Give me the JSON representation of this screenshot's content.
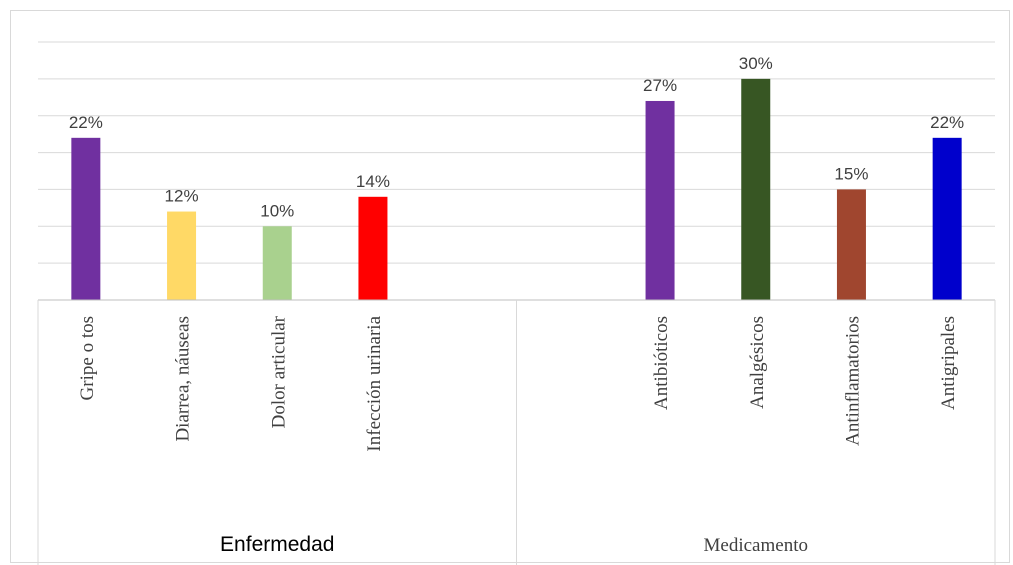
{
  "chart_data": {
    "type": "bar",
    "ylim": [
      0,
      35
    ],
    "grid": true,
    "groups": [
      {
        "label": "Enfermedad",
        "categories": [
          "Gripe o tos",
          "Diarrea, náuseas",
          "Dolor articular",
          "Infección urinaria"
        ],
        "values": [
          22,
          12,
          10,
          14
        ],
        "value_labels": [
          "22%",
          "12%",
          "10%",
          "14%"
        ],
        "colors": [
          "#7030a0",
          "#ffd966",
          "#a9d18e",
          "#ff0000"
        ]
      },
      {
        "label": "Medicamento",
        "categories": [
          "Antibióticos",
          "Analgésicos",
          "Antinflamatorios",
          "Antigripales"
        ],
        "values": [
          27,
          30,
          15,
          22
        ],
        "value_labels": [
          "27%",
          "30%",
          "15%",
          "22%"
        ],
        "colors": [
          "#7030a0",
          "#375623",
          "#a0462f",
          "#0000cc"
        ]
      }
    ]
  }
}
